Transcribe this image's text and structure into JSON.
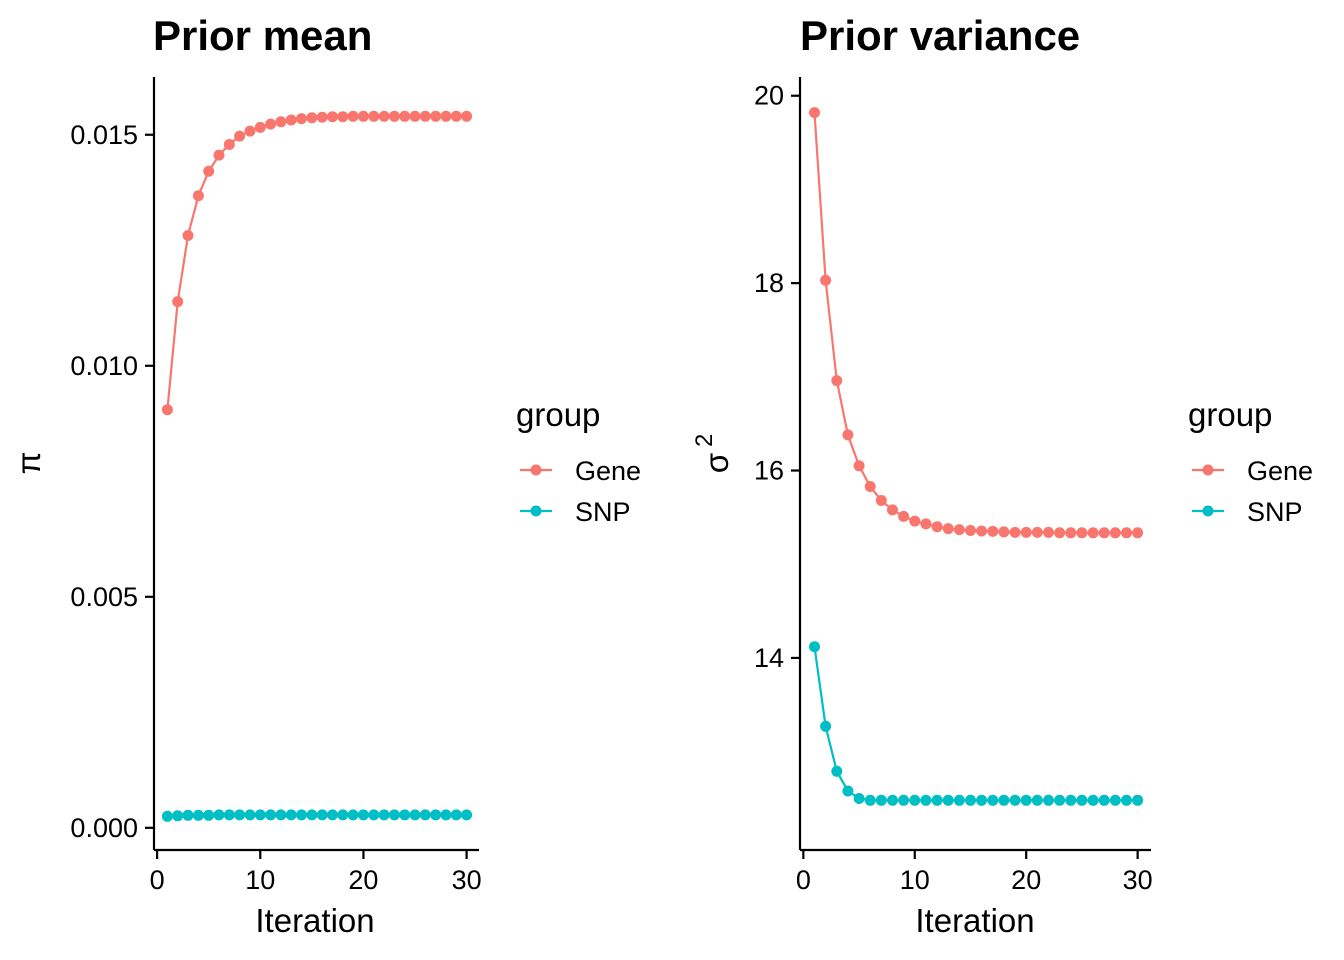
{
  "colors": {
    "gene": "#F8766D",
    "snp": "#00BFC4",
    "axis": "#000000"
  },
  "chart_data": [
    {
      "type": "line",
      "title": "Prior mean",
      "xlabel": "Iteration",
      "ylabel": "π",
      "xlim": [
        -0.3,
        31.2
      ],
      "ylim": [
        -0.00048,
        0.01625
      ],
      "xticks": [
        0,
        10,
        20,
        30
      ],
      "xtick_labels": [
        "0",
        "10",
        "20",
        "30"
      ],
      "yticks": [
        0,
        0.005,
        0.01,
        0.015
      ],
      "ytick_labels": [
        "0.000",
        "0.005",
        "0.010",
        "0.015"
      ],
      "x": [
        1,
        2,
        3,
        4,
        5,
        6,
        7,
        8,
        9,
        10,
        11,
        12,
        13,
        14,
        15,
        16,
        17,
        18,
        19,
        20,
        21,
        22,
        23,
        24,
        25,
        26,
        27,
        28,
        29,
        30
      ],
      "series": [
        {
          "name": "Gene",
          "values": [
            0.00905,
            0.01139,
            0.01282,
            0.01368,
            0.01421,
            0.01456,
            0.01479,
            0.01497,
            0.01508,
            0.01516,
            0.01523,
            0.01528,
            0.01532,
            0.01535,
            0.01537,
            0.01538,
            0.01539,
            0.01539,
            0.0154,
            0.0154,
            0.0154,
            0.0154,
            0.0154,
            0.0154,
            0.0154,
            0.0154,
            0.0154,
            0.0154,
            0.0154,
            0.0154
          ]
        },
        {
          "name": "SNP",
          "values": [
            0.00025,
            0.00026,
            0.00027,
            0.00027,
            0.00027,
            0.00028,
            0.00028,
            0.00028,
            0.00028,
            0.00028,
            0.00028,
            0.00028,
            0.00028,
            0.00028,
            0.00028,
            0.00028,
            0.00028,
            0.00028,
            0.00028,
            0.00028,
            0.00028,
            0.00028,
            0.00028,
            0.00028,
            0.00028,
            0.00028,
            0.00028,
            0.00028,
            0.00028,
            0.00028
          ]
        }
      ],
      "legend": {
        "title": "group",
        "entries": [
          "Gene",
          "SNP"
        ],
        "position": "right"
      }
    },
    {
      "type": "line",
      "title": "Prior variance",
      "xlabel": "Iteration",
      "ylabel": "σ²",
      "ylabel_symbol": "σ",
      "ylabel_superscript": "2",
      "xlim": [
        -0.3,
        31.2
      ],
      "ylim": [
        11.95,
        20.2
      ],
      "xticks": [
        0,
        10,
        20,
        30
      ],
      "xtick_labels": [
        "0",
        "10",
        "20",
        "30"
      ],
      "yticks": [
        14,
        16,
        18,
        20
      ],
      "ytick_labels": [
        "14",
        "16",
        "18",
        "20"
      ],
      "x": [
        1,
        2,
        3,
        4,
        5,
        6,
        7,
        8,
        9,
        10,
        11,
        12,
        13,
        14,
        15,
        16,
        17,
        18,
        19,
        20,
        21,
        22,
        23,
        24,
        25,
        26,
        27,
        28,
        29,
        30
      ],
      "series": [
        {
          "name": "Gene",
          "values": [
            19.82,
            18.03,
            16.96,
            16.38,
            16.05,
            15.83,
            15.68,
            15.58,
            15.51,
            15.46,
            15.43,
            15.4,
            15.38,
            15.37,
            15.36,
            15.355,
            15.35,
            15.345,
            15.34,
            15.34,
            15.34,
            15.34,
            15.335,
            15.335,
            15.335,
            15.335,
            15.335,
            15.335,
            15.335,
            15.335
          ]
        },
        {
          "name": "SNP",
          "values": [
            14.12,
            13.27,
            12.79,
            12.58,
            12.5,
            12.48,
            12.48,
            12.48,
            12.48,
            12.48,
            12.48,
            12.48,
            12.48,
            12.48,
            12.48,
            12.48,
            12.48,
            12.48,
            12.48,
            12.48,
            12.48,
            12.48,
            12.48,
            12.48,
            12.48,
            12.48,
            12.48,
            12.48,
            12.48,
            12.48
          ]
        }
      ],
      "legend": {
        "title": "group",
        "entries": [
          "Gene",
          "SNP"
        ],
        "position": "right"
      }
    }
  ]
}
